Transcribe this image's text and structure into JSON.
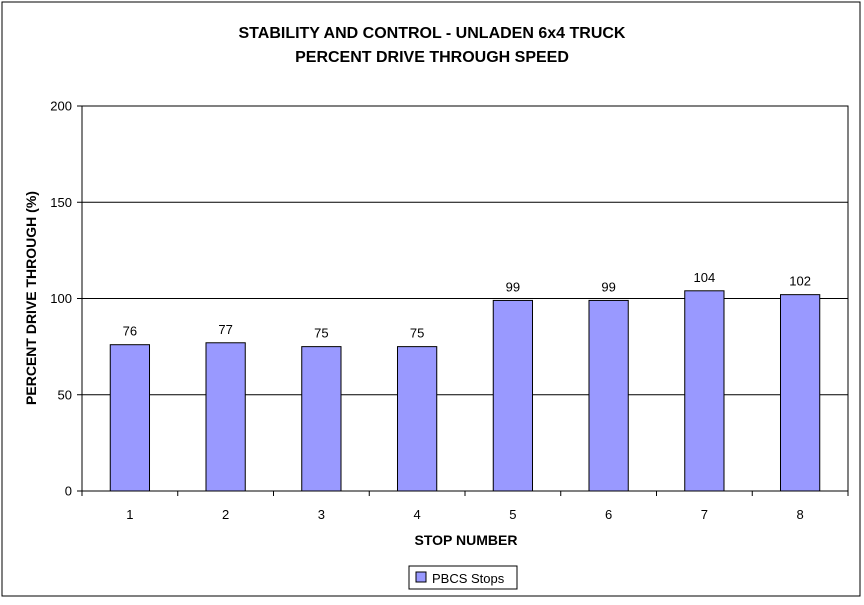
{
  "chart_data": {
    "type": "bar",
    "title": "STABILITY AND CONTROL - UNLADEN 6x4 TRUCK",
    "subtitle": "PERCENT DRIVE THROUGH SPEED",
    "xlabel": "STOP NUMBER",
    "ylabel": "PERCENT DRIVE THROUGH (%)",
    "categories": [
      "1",
      "2",
      "3",
      "4",
      "5",
      "6",
      "7",
      "8"
    ],
    "series": [
      {
        "name": "PBCS Stops",
        "values": [
          76,
          77,
          75,
          75,
          99,
          99,
          104,
          102
        ],
        "color": "#9999ff"
      }
    ],
    "data_labels": [
      "76",
      "77",
      "75",
      "75",
      "99",
      "99",
      "104",
      "102"
    ],
    "ylim": [
      0,
      200
    ],
    "yticks": [
      "0",
      "50",
      "100",
      "150",
      "200"
    ],
    "grid": true,
    "legend_position": "bottom"
  }
}
